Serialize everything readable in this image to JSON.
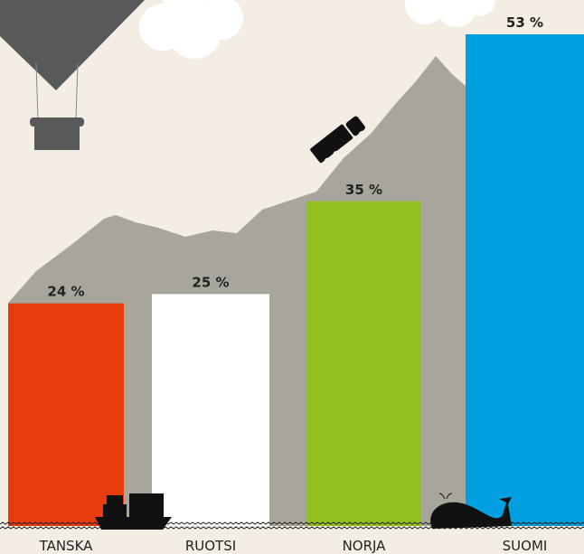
{
  "chart_data": {
    "type": "bar",
    "categories": [
      "TANSKA",
      "RUOTSI",
      "NORJA",
      "SUOMI"
    ],
    "values": [
      24,
      25,
      35,
      53
    ],
    "value_labels": [
      "24 %",
      "25 %",
      "35 %",
      "53 %"
    ],
    "colors": [
      "#e63c0e",
      "#ffffff",
      "#93c01f",
      "#00a0e0"
    ]
  }
}
